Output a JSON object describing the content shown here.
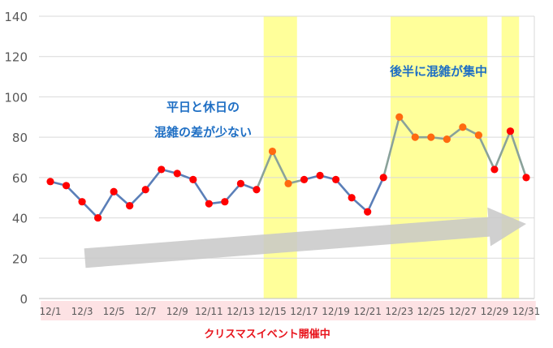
{
  "chart_data": {
    "type": "line",
    "categories": [
      "12/1",
      "12/2",
      "12/3",
      "12/4",
      "12/5",
      "12/6",
      "12/7",
      "12/8",
      "12/9",
      "12/10",
      "12/11",
      "12/12",
      "12/13",
      "12/14",
      "12/15",
      "12/16",
      "12/17",
      "12/18",
      "12/19",
      "12/20",
      "12/21",
      "12/22",
      "12/23",
      "12/24",
      "12/25",
      "12/26",
      "12/27",
      "12/28",
      "12/29",
      "12/30",
      "12/31"
    ],
    "tick_labels": [
      "12/1",
      "12/3",
      "12/5",
      "12/7",
      "12/9",
      "12/11",
      "12/13",
      "12/15",
      "12/17",
      "12/19",
      "12/21",
      "12/23",
      "12/25",
      "12/27",
      "12/29",
      "12/31"
    ],
    "series": [
      {
        "values": [
          58,
          56,
          48,
          40,
          53,
          46,
          54,
          64,
          62,
          59,
          47,
          48,
          57,
          54,
          73,
          57,
          59,
          61,
          59,
          50,
          43,
          60,
          90,
          80,
          80,
          79,
          85,
          81,
          64,
          83,
          60
        ]
      }
    ],
    "orange_marker_dates": [
      "12/15",
      "12/16",
      "12/23",
      "12/24",
      "12/25",
      "12/26",
      "12/27",
      "12/28"
    ],
    "highlight_ranges": [
      {
        "from": "12/15",
        "to": "12/16"
      },
      {
        "from": "12/23",
        "to": "12/28"
      },
      {
        "from": "12/30",
        "to": "12/30"
      }
    ],
    "event_period": {
      "from": "12/1",
      "to": "12/31"
    },
    "ylim": [
      0,
      140
    ],
    "y_ticks": [
      0,
      20,
      40,
      60,
      80,
      100,
      120,
      140
    ],
    "grid": true,
    "annotations": [
      {
        "lines": [
          "平日と休日の",
          "混雑の差が少ない"
        ]
      },
      {
        "lines": [
          "後半に混雑が集中"
        ]
      }
    ],
    "event_label": "クリスマスイベント開催中",
    "trend_arrow": {
      "from": {
        "x": "12/2",
        "y": 20
      },
      "to": {
        "x": "12/31",
        "y": 37
      }
    }
  },
  "colors": {
    "line": "#5b7fb8",
    "line_highlight": "#8aa29a",
    "marker": "#ff0000",
    "marker_highlight": "#ff6a10",
    "highlight_band": "#ffff9a",
    "annotation_text": "#1f6fc4",
    "event_band": "#fde2e4",
    "event_text": "#e8141c",
    "grid": "#d9d9d9",
    "axis_text": "#595959",
    "arrow_fill": "#c8c8c8"
  }
}
